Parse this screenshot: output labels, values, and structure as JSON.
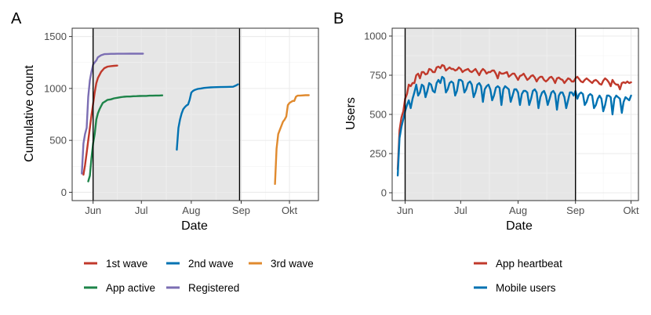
{
  "chart_data": [
    {
      "panel": "A",
      "type": "line",
      "xlabel": "Date",
      "ylabel": "Cumulative count",
      "x_unit": "days since 1 May",
      "xlim": [
        18,
        171
      ],
      "ylim": [
        -80,
        1580
      ],
      "x_ticks": [
        {
          "label": "Jun",
          "x": 31
        },
        {
          "label": "Jul",
          "x": 61
        },
        {
          "label": "Aug",
          "x": 92
        },
        {
          "label": "Sep",
          "x": 123
        },
        {
          "label": "Okt",
          "x": 153
        }
      ],
      "y_ticks": [
        0,
        500,
        1000,
        1500
      ],
      "shaded_region": [
        31,
        122
      ],
      "vlines": [
        31,
        122
      ],
      "series": [
        {
          "name": "1st wave",
          "color": "#c0392b",
          "x": [
            25,
            26,
            27,
            28,
            29,
            30,
            31,
            32,
            33,
            34,
            36,
            38,
            40,
            42,
            44,
            46
          ],
          "values": [
            170,
            260,
            380,
            500,
            620,
            740,
            850,
            960,
            1050,
            1100,
            1160,
            1195,
            1210,
            1215,
            1218,
            1220
          ]
        },
        {
          "name": "App active",
          "color": "#1e8449",
          "x": [
            28,
            29,
            30,
            31,
            32,
            33,
            34,
            35,
            36,
            37,
            38,
            39,
            40,
            42,
            44,
            46,
            48,
            50,
            52,
            54,
            56,
            58,
            60,
            62,
            64,
            66,
            68,
            70,
            72,
            74
          ],
          "values": [
            105,
            160,
            330,
            470,
            560,
            700,
            760,
            800,
            830,
            860,
            870,
            880,
            890,
            895,
            905,
            910,
            915,
            920,
            922,
            922,
            925,
            926,
            927,
            928,
            928,
            930,
            930,
            932,
            932,
            933
          ]
        },
        {
          "name": "Registered",
          "color": "#7b6eb3",
          "x": [
            24,
            25,
            26,
            27,
            28,
            29,
            30,
            31,
            32,
            33,
            34,
            36,
            38,
            40,
            42,
            44,
            46,
            50,
            54,
            58,
            62
          ],
          "values": [
            180,
            470,
            560,
            620,
            920,
            1080,
            1160,
            1230,
            1250,
            1270,
            1300,
            1320,
            1330,
            1332,
            1333,
            1333,
            1334,
            1334,
            1335,
            1335,
            1335
          ]
        },
        {
          "name": "2nd wave",
          "color": "#0072b2",
          "x": [
            83,
            84,
            85,
            86,
            87,
            88,
            89,
            90,
            91,
            92,
            93,
            94,
            96,
            98,
            100,
            102,
            104,
            106,
            110,
            114,
            118,
            120,
            121
          ],
          "values": [
            410,
            620,
            700,
            760,
            800,
            820,
            835,
            845,
            890,
            960,
            975,
            985,
            995,
            1000,
            1005,
            1008,
            1010,
            1012,
            1013,
            1015,
            1016,
            1030,
            1040
          ]
        },
        {
          "name": "3rd wave",
          "color": "#e08a2e",
          "x": [
            144,
            144.5,
            145,
            146,
            147,
            148,
            149,
            150,
            151,
            152,
            153,
            154,
            155,
            156,
            157,
            158,
            160,
            163,
            165
          ],
          "values": [
            80,
            250,
            420,
            560,
            600,
            640,
            680,
            700,
            730,
            840,
            860,
            870,
            880,
            880,
            920,
            930,
            932,
            935,
            935
          ]
        }
      ]
    },
    {
      "panel": "B",
      "type": "line",
      "xlabel": "Date",
      "ylabel": "Users",
      "x_unit": "days since 1 May",
      "xlim": [
        24,
        157
      ],
      "ylim": [
        -50,
        1050
      ],
      "x_ticks": [
        {
          "label": "Jun",
          "x": 31
        },
        {
          "label": "Jul",
          "x": 61
        },
        {
          "label": "Aug",
          "x": 92
        },
        {
          "label": "Sep",
          "x": 123
        },
        {
          "label": "Okt",
          "x": 153
        }
      ],
      "y_ticks": [
        0,
        250,
        500,
        750,
        1000
      ],
      "shaded_region": [
        31,
        123
      ],
      "vlines": [
        31,
        123
      ],
      "series": [
        {
          "name": "App heartbeat",
          "color": "#c0392b",
          "x": [
            27,
            28,
            29,
            30,
            31,
            32,
            33,
            34,
            35,
            36,
            37,
            38,
            39,
            40,
            41,
            42,
            43,
            44,
            45,
            46,
            47,
            48,
            49,
            50,
            51,
            52,
            53,
            54,
            55,
            56,
            57,
            58,
            59,
            60,
            61,
            62,
            63,
            64,
            65,
            66,
            67,
            68,
            69,
            70,
            71,
            72,
            73,
            74,
            75,
            76,
            77,
            78,
            79,
            80,
            81,
            82,
            83,
            84,
            85,
            86,
            87,
            88,
            89,
            90,
            91,
            92,
            93,
            94,
            95,
            96,
            97,
            98,
            99,
            100,
            101,
            102,
            103,
            104,
            105,
            106,
            107,
            108,
            109,
            110,
            111,
            112,
            113,
            114,
            115,
            116,
            117,
            118,
            119,
            120,
            121,
            122,
            123,
            124,
            125,
            126,
            127,
            128,
            129,
            130,
            131,
            132,
            133,
            134,
            135,
            136,
            137,
            138,
            139,
            140,
            141,
            142,
            143,
            144,
            145,
            146,
            147,
            148,
            149,
            150,
            151,
            152,
            153
          ],
          "values": [
            150,
            400,
            480,
            520,
            600,
            630,
            690,
            680,
            700,
            700,
            750,
            760,
            730,
            770,
            770,
            755,
            760,
            790,
            785,
            770,
            770,
            800,
            805,
            795,
            815,
            810,
            780,
            790,
            800,
            790,
            790,
            780,
            785,
            800,
            790,
            770,
            780,
            785,
            790,
            775,
            770,
            780,
            790,
            770,
            750,
            775,
            790,
            780,
            760,
            770,
            770,
            780,
            780,
            760,
            730,
            770,
            760,
            760,
            765,
            770,
            740,
            750,
            760,
            760,
            740,
            720,
            745,
            750,
            760,
            740,
            720,
            730,
            745,
            750,
            735,
            710,
            730,
            740,
            740,
            720,
            710,
            720,
            735,
            740,
            725,
            700,
            730,
            735,
            725,
            720,
            700,
            715,
            730,
            725,
            710,
            710,
            730,
            740,
            725,
            710,
            705,
            720,
            730,
            720,
            710,
            700,
            715,
            720,
            710,
            695,
            690,
            715,
            730,
            720,
            705,
            680,
            720,
            700,
            690,
            690,
            660,
            700,
            705,
            700,
            710,
            700,
            705
          ]
        },
        {
          "name": "Mobile users",
          "color": "#0072b2",
          "x": [
            27,
            28,
            29,
            30,
            31,
            32,
            33,
            34,
            35,
            36,
            37,
            38,
            39,
            40,
            41,
            42,
            43,
            44,
            45,
            46,
            47,
            48,
            49,
            50,
            51,
            52,
            53,
            54,
            55,
            56,
            57,
            58,
            59,
            60,
            61,
            62,
            63,
            64,
            65,
            66,
            67,
            68,
            69,
            70,
            71,
            72,
            73,
            74,
            75,
            76,
            77,
            78,
            79,
            80,
            81,
            82,
            83,
            84,
            85,
            86,
            87,
            88,
            89,
            90,
            91,
            92,
            93,
            94,
            95,
            96,
            97,
            98,
            99,
            100,
            101,
            102,
            103,
            104,
            105,
            106,
            107,
            108,
            109,
            110,
            111,
            112,
            113,
            114,
            115,
            116,
            117,
            118,
            119,
            120,
            121,
            122,
            123,
            124,
            125,
            126,
            127,
            128,
            129,
            130,
            131,
            132,
            133,
            134,
            135,
            136,
            137,
            138,
            139,
            140,
            141,
            142,
            143,
            144,
            145,
            146,
            147,
            148,
            149,
            150,
            151,
            152,
            153
          ],
          "values": [
            110,
            350,
            420,
            470,
            520,
            560,
            590,
            540,
            600,
            640,
            690,
            620,
            640,
            690,
            680,
            610,
            650,
            700,
            690,
            650,
            640,
            700,
            720,
            700,
            740,
            730,
            640,
            660,
            700,
            710,
            700,
            620,
            650,
            720,
            720,
            710,
            640,
            660,
            700,
            710,
            690,
            610,
            640,
            690,
            700,
            680,
            580,
            660,
            680,
            690,
            660,
            590,
            620,
            670,
            680,
            670,
            560,
            660,
            680,
            670,
            660,
            580,
            620,
            660,
            660,
            640,
            560,
            630,
            650,
            650,
            640,
            560,
            600,
            650,
            660,
            640,
            540,
            610,
            640,
            650,
            620,
            560,
            600,
            640,
            650,
            630,
            530,
            620,
            640,
            640,
            610,
            540,
            590,
            640,
            640,
            620,
            650,
            600,
            630,
            640,
            630,
            560,
            580,
            620,
            630,
            620,
            540,
            560,
            600,
            620,
            600,
            520,
            560,
            620,
            620,
            610,
            500,
            600,
            620,
            610,
            600,
            510,
            580,
            610,
            600,
            590,
            620
          ]
        }
      ]
    }
  ],
  "panels": {
    "a": {
      "letter": "A"
    },
    "b": {
      "letter": "B"
    }
  },
  "legends": {
    "a": [
      "1st wave",
      "2nd wave",
      "3rd wave",
      "App active",
      "Registered"
    ],
    "b": [
      "App heartbeat",
      "Mobile users"
    ]
  },
  "colors": {
    "shade": "#e6e6e6",
    "grid_major": "#ebebeb",
    "grid_minor": "#f4f4f4",
    "axis_line": "#000000",
    "panel_border": "#333333"
  }
}
